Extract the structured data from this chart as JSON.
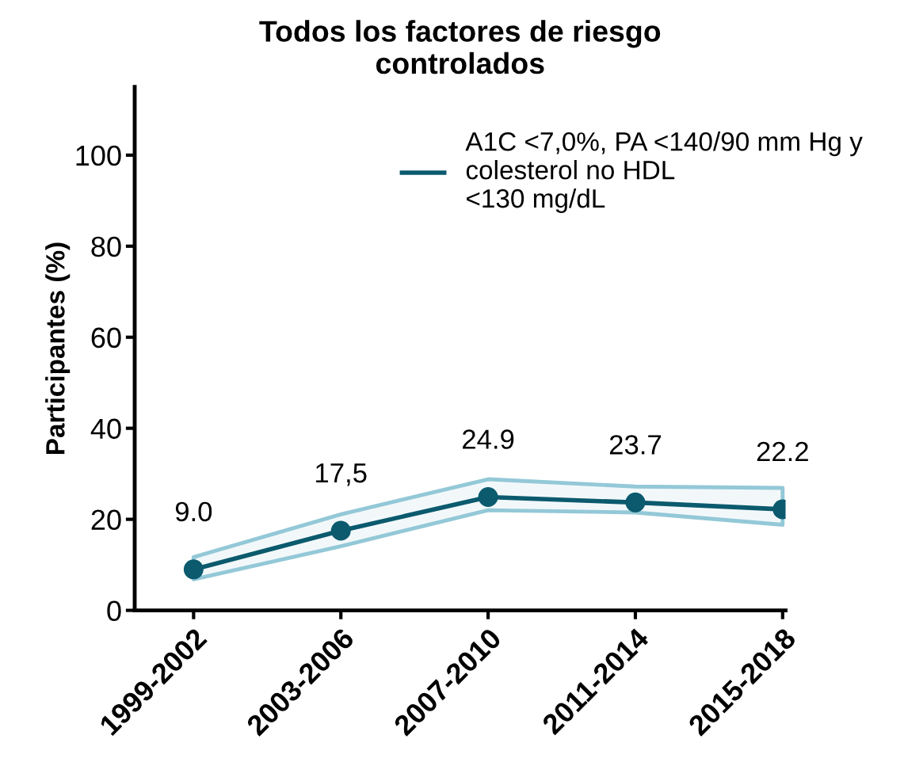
{
  "chart_data": {
    "type": "line",
    "title": "Todos los factores de riesgo\ncontrolados",
    "ylabel": "Participantes (%)",
    "categories": [
      "1999-2002",
      "2003-2006",
      "2007-2010",
      "2011-2014",
      "2015-2018"
    ],
    "series": [
      {
        "name": "A1C <7,0%, PA <140/90 mm Hg y\ncolesterol no HDL\n<130 mg/dL",
        "color": "#0b5a6e",
        "values": [
          9.0,
          17.5,
          24.9,
          23.7,
          22.2
        ],
        "value_labels": [
          "9.0",
          "17,5",
          "24.9",
          "23.7",
          "22.2"
        ],
        "lower": [
          6.8,
          14.1,
          22.0,
          21.5,
          18.8
        ],
        "upper": [
          11.7,
          21.1,
          28.8,
          27.2,
          26.9
        ]
      }
    ],
    "ylim": [
      0,
      115
    ],
    "yticks": [
      0,
      20,
      40,
      60,
      80,
      100
    ],
    "grid": false,
    "legend": "top right",
    "marker": "circle",
    "line_style": "solid"
  }
}
